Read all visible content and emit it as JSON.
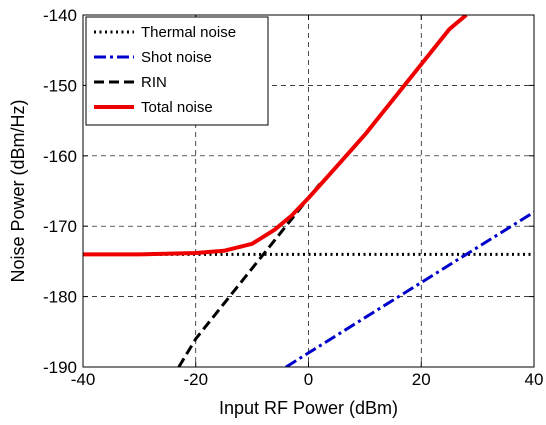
{
  "chart_data": {
    "type": "line",
    "title": "",
    "xlabel": "Input RF Power (dBm)",
    "ylabel": "Noise Power (dBm/Hz)",
    "xlim": [
      -40,
      40
    ],
    "ylim": [
      -190,
      -140
    ],
    "xticks": [
      -40,
      -20,
      0,
      20,
      40
    ],
    "yticks": [
      -140,
      -150,
      -160,
      -170,
      -180,
      -190
    ],
    "xtick_labels": [
      "-40",
      "-20",
      "0",
      "20",
      "40"
    ],
    "ytick_labels": [
      "-140",
      "-150",
      "-160",
      "-170",
      "-180",
      "-190"
    ],
    "grid": true,
    "legend_position": "top-left",
    "series": [
      {
        "name": "Thermal noise",
        "color": "#000000",
        "style": "dotted",
        "x": [
          -40,
          40
        ],
        "y": [
          -174,
          -174
        ]
      },
      {
        "name": "Shot noise",
        "color": "#0000cc",
        "style": "dashdot",
        "x": [
          -4,
          0,
          10,
          20,
          30,
          40
        ],
        "y": [
          -190,
          -188,
          -183,
          -178,
          -173,
          -168
        ]
      },
      {
        "name": "RIN",
        "color": "#000000",
        "style": "dashed",
        "x": [
          -23,
          -20,
          -10,
          0,
          2
        ],
        "y": [
          -190,
          -186,
          -176,
          -166,
          -164
        ]
      },
      {
        "name": "Total noise",
        "color": "#ee0000",
        "style": "solid",
        "x": [
          -40,
          -30,
          -20,
          -15,
          -10,
          -6,
          -3,
          0,
          5,
          10,
          15,
          20,
          25,
          28
        ],
        "y": [
          -174,
          -174,
          -173.8,
          -173.5,
          -172.5,
          -170.5,
          -168.5,
          -166,
          -161.5,
          -157,
          -152,
          -147,
          -142,
          -140
        ]
      }
    ]
  }
}
